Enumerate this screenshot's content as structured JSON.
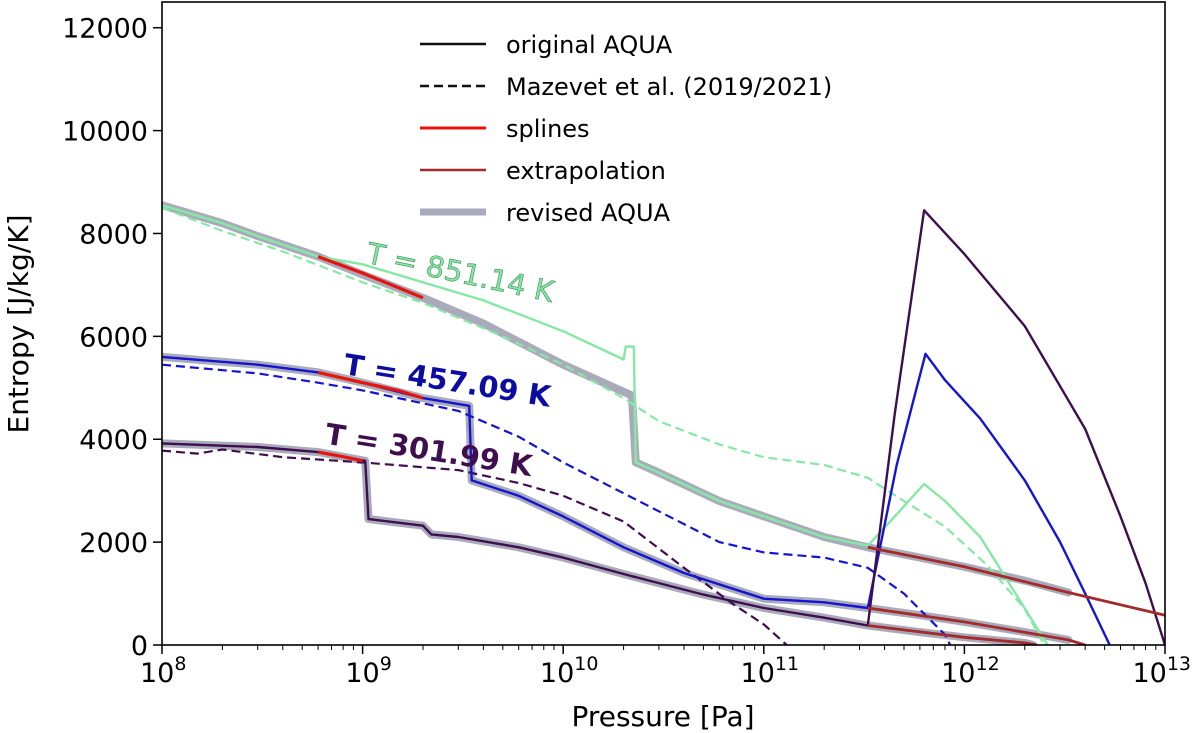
{
  "chart_data": {
    "type": "line",
    "title": "",
    "xlabel": "Pressure [Pa]",
    "ylabel": "Entropy [J/kg/K]",
    "x_scale": "log",
    "xlim": [
      100000000.0,
      10000000000000.0
    ],
    "ylim": [
      0,
      12500
    ],
    "x_tick_labels": [
      {
        "base": "10",
        "exp": "8",
        "value": 100000000.0
      },
      {
        "base": "10",
        "exp": "9",
        "value": 1000000000.0
      },
      {
        "base": "10",
        "exp": "10",
        "value": 10000000000.0
      },
      {
        "base": "10",
        "exp": "11",
        "value": 100000000000.0
      },
      {
        "base": "10",
        "exp": "12",
        "value": 1000000000000.0
      },
      {
        "base": "10",
        "exp": "13",
        "value": 10000000000000.0
      }
    ],
    "y_ticks": [
      0,
      2000,
      4000,
      6000,
      8000,
      10000,
      12000
    ],
    "y_tick_labels": [
      "0",
      "2000",
      "4000",
      "6000",
      "8000",
      "10000",
      "12000"
    ],
    "grid": false,
    "legend_position": "top-center",
    "legend": [
      {
        "label": "original AQUA",
        "style": "solid",
        "color": "#111111"
      },
      {
        "label": "Mazevet et al. (2019/2021)",
        "style": "dashed",
        "color": "#111111"
      },
      {
        "label": "splines",
        "style": "solid",
        "color": "#e8140c"
      },
      {
        "label": "extrapolation",
        "style": "solid",
        "color": "#a52a2a"
      },
      {
        "label": "revised AQUA",
        "style": "thick",
        "color": "#a9abbb"
      }
    ],
    "annotations": [
      {
        "text": "T = 851.14 K",
        "color": "#86e8a4",
        "x": 3000000000.0,
        "y": 7050,
        "rotation": 12,
        "weight": "normal"
      },
      {
        "text": "T = 457.09 K",
        "color": "#0c0ca0",
        "x": 2600000000.0,
        "y": 4950,
        "rotation": 9,
        "weight": "bold"
      },
      {
        "text": "T = 301.99 K",
        "color": "#3e0e4e",
        "x": 2100000000.0,
        "y": 3600,
        "rotation": 9,
        "weight": "bold"
      }
    ],
    "series": [
      {
        "name": "T = 851.14 K",
        "temperature": 851.14,
        "color": "#86e8a4",
        "revised_aqua": [
          [
            100000000.0,
            8550
          ],
          [
            200000000.0,
            8200
          ],
          [
            300000000.0,
            7950
          ],
          [
            600000000.0,
            7550
          ],
          [
            1000000000.0,
            7200
          ],
          [
            2000000000.0,
            6750
          ],
          [
            4000000000.0,
            6250
          ],
          [
            10000000000.0,
            5450
          ],
          [
            22000000000.0,
            4850
          ],
          [
            23000000000.0,
            3550
          ],
          [
            30000000000.0,
            3350
          ],
          [
            60000000000.0,
            2800
          ],
          [
            100000000000.0,
            2500
          ],
          [
            200000000000.0,
            2100
          ],
          [
            330000000000.0,
            1900
          ],
          [
            600000000000.0,
            1700
          ],
          [
            1000000000000.0,
            1520
          ],
          [
            2000000000000.0,
            1250
          ],
          [
            3300000000000.0,
            1020
          ]
        ],
        "original_aqua": [
          [
            100000000.0,
            8550
          ],
          [
            200000000.0,
            8200
          ],
          [
            300000000.0,
            7950
          ],
          [
            600000000.0,
            7550
          ],
          [
            1000000000.0,
            7400
          ],
          [
            2000000000.0,
            7050
          ],
          [
            4000000000.0,
            6700
          ],
          [
            10000000000.0,
            6100
          ],
          [
            20000000000.0,
            5550
          ],
          [
            20500000000.0,
            5800
          ],
          [
            22500000000.0,
            5800
          ],
          [
            23000000000.0,
            3550
          ],
          [
            30000000000.0,
            3350
          ],
          [
            60000000000.0,
            2800
          ],
          [
            100000000000.0,
            2500
          ],
          [
            200000000000.0,
            2100
          ],
          [
            330000000000.0,
            1930
          ],
          [
            450000000000.0,
            2500
          ],
          [
            630000000000.0,
            3130
          ],
          [
            800000000000.0,
            2800
          ],
          [
            1200000000000.0,
            2100
          ],
          [
            1800000000000.0,
            1000
          ],
          [
            2600000000000.0,
            0
          ]
        ],
        "mazevet": [
          [
            100000000.0,
            8500
          ],
          [
            200000000.0,
            8050
          ],
          [
            400000000.0,
            7650
          ],
          [
            1000000000.0,
            7050
          ],
          [
            2000000000.0,
            6650
          ],
          [
            5000000000.0,
            6000
          ],
          [
            10000000000.0,
            5450
          ],
          [
            20000000000.0,
            4800
          ],
          [
            30000000000.0,
            4350
          ],
          [
            60000000000.0,
            3900
          ],
          [
            100000000000.0,
            3650
          ],
          [
            200000000000.0,
            3500
          ],
          [
            330000000000.0,
            3250
          ],
          [
            500000000000.0,
            2800
          ],
          [
            800000000000.0,
            2300
          ],
          [
            1300000000000.0,
            1550
          ],
          [
            2000000000000.0,
            700
          ],
          [
            2500000000000.0,
            0
          ]
        ],
        "splines": [
          [
            600000000.0,
            7550
          ],
          [
            1000000000.0,
            7230
          ],
          [
            1500000000.0,
            6950
          ],
          [
            2000000000.0,
            6750
          ]
        ],
        "extrapolation": [
          [
            330000000000.0,
            1900
          ],
          [
            1000000000000.0,
            1520
          ],
          [
            3300000000000.0,
            1020
          ],
          [
            10000000000000.0,
            580
          ]
        ]
      },
      {
        "name": "T = 457.09 K",
        "temperature": 457.09,
        "color": "#1414d2",
        "revised_aqua": [
          [
            100000000.0,
            5600
          ],
          [
            300000000.0,
            5450
          ],
          [
            600000000.0,
            5300
          ],
          [
            1000000000.0,
            5100
          ],
          [
            2000000000.0,
            4800
          ],
          [
            3400000000.0,
            4650
          ],
          [
            3500000000.0,
            3200
          ],
          [
            6000000000.0,
            2900
          ],
          [
            10000000000.0,
            2500
          ],
          [
            20000000000.0,
            1900
          ],
          [
            40000000000.0,
            1400
          ],
          [
            100000000000.0,
            900
          ],
          [
            200000000000.0,
            830
          ],
          [
            330000000000.0,
            720
          ],
          [
            600000000000.0,
            580
          ],
          [
            1000000000000.0,
            450
          ],
          [
            2000000000000.0,
            250
          ],
          [
            3300000000000.0,
            100
          ]
        ],
        "original_aqua": [
          [
            100000000.0,
            5600
          ],
          [
            300000000.0,
            5450
          ],
          [
            600000000.0,
            5300
          ],
          [
            1000000000.0,
            5100
          ],
          [
            2000000000.0,
            4800
          ],
          [
            3400000000.0,
            4650
          ],
          [
            3500000000.0,
            3200
          ],
          [
            6000000000.0,
            2900
          ],
          [
            10000000000.0,
            2500
          ],
          [
            20000000000.0,
            1900
          ],
          [
            40000000000.0,
            1400
          ],
          [
            100000000000.0,
            900
          ],
          [
            200000000000.0,
            830
          ],
          [
            330000000000.0,
            720
          ],
          [
            460000000000.0,
            3500
          ],
          [
            640000000000.0,
            5660
          ],
          [
            800000000000.0,
            5150
          ],
          [
            1200000000000.0,
            4400
          ],
          [
            2000000000000.0,
            3200
          ],
          [
            3000000000000.0,
            2000
          ],
          [
            4000000000000.0,
            1000
          ],
          [
            5300000000000.0,
            0
          ]
        ],
        "mazevet": [
          [
            100000000.0,
            5450
          ],
          [
            300000000.0,
            5280
          ],
          [
            600000000.0,
            5100
          ],
          [
            1000000000.0,
            4950
          ],
          [
            3000000000.0,
            4550
          ],
          [
            6000000000.0,
            4050
          ],
          [
            10000000000.0,
            3550
          ],
          [
            30000000000.0,
            2600
          ],
          [
            60000000000.0,
            2000
          ],
          [
            100000000000.0,
            1800
          ],
          [
            200000000000.0,
            1700
          ],
          [
            330000000000.0,
            1500
          ],
          [
            500000000000.0,
            1000
          ],
          [
            800000000000.0,
            200
          ],
          [
            850000000000.0,
            0
          ]
        ],
        "splines": [
          [
            600000000.0,
            5300
          ],
          [
            1000000000.0,
            5100
          ],
          [
            1500000000.0,
            4950
          ],
          [
            2000000000.0,
            4800
          ]
        ],
        "extrapolation": [
          [
            330000000000.0,
            720
          ],
          [
            1000000000000.0,
            450
          ],
          [
            3300000000000.0,
            100
          ],
          [
            4000000000000.0,
            0
          ]
        ]
      },
      {
        "name": "T = 301.99 K",
        "temperature": 301.99,
        "color": "#3e0e4e",
        "revised_aqua": [
          [
            100000000.0,
            3920
          ],
          [
            300000000.0,
            3850
          ],
          [
            600000000.0,
            3750
          ],
          [
            1030000000.0,
            3580
          ],
          [
            1070000000.0,
            2450
          ],
          [
            2000000000.0,
            2320
          ],
          [
            2200000000.0,
            2150
          ],
          [
            3000000000.0,
            2100
          ],
          [
            6000000000.0,
            1900
          ],
          [
            10000000000.0,
            1700
          ],
          [
            20000000000.0,
            1380
          ],
          [
            50000000000.0,
            980
          ],
          [
            100000000000.0,
            720
          ],
          [
            200000000000.0,
            530
          ],
          [
            330000000000.0,
            380
          ],
          [
            600000000000.0,
            250
          ],
          [
            1000000000000.0,
            150
          ],
          [
            2000000000000.0,
            40
          ],
          [
            2200000000000.0,
            0
          ]
        ],
        "original_aqua": [
          [
            100000000.0,
            3920
          ],
          [
            300000000.0,
            3850
          ],
          [
            600000000.0,
            3750
          ],
          [
            1030000000.0,
            3580
          ],
          [
            1070000000.0,
            2450
          ],
          [
            2000000000.0,
            2320
          ],
          [
            2200000000.0,
            2150
          ],
          [
            3000000000.0,
            2100
          ],
          [
            6000000000.0,
            1900
          ],
          [
            10000000000.0,
            1700
          ],
          [
            20000000000.0,
            1380
          ],
          [
            50000000000.0,
            980
          ],
          [
            100000000000.0,
            720
          ],
          [
            200000000000.0,
            530
          ],
          [
            330000000000.0,
            380
          ],
          [
            450000000000.0,
            4500
          ],
          [
            630000000000.0,
            8450
          ],
          [
            1000000000000.0,
            7600
          ],
          [
            2000000000000.0,
            6200
          ],
          [
            4000000000000.0,
            4200
          ],
          [
            6000000000000.0,
            2500
          ],
          [
            8000000000000.0,
            1200
          ],
          [
            10000000000000.0,
            0
          ]
        ],
        "mazevet": [
          [
            100000000.0,
            3780
          ],
          [
            150000000.0,
            3720
          ],
          [
            200000000.0,
            3800
          ],
          [
            400000000.0,
            3650
          ],
          [
            1000000000.0,
            3550
          ],
          [
            3000000000.0,
            3400
          ],
          [
            6000000000.0,
            3150
          ],
          [
            10000000000.0,
            2900
          ],
          [
            20000000000.0,
            2400
          ],
          [
            40000000000.0,
            1500
          ],
          [
            70000000000.0,
            800
          ],
          [
            100000000000.0,
            400
          ],
          [
            130000000000.0,
            0
          ]
        ],
        "splines": [
          [
            600000000.0,
            3750
          ],
          [
            800000000.0,
            3660
          ],
          [
            1000000000.0,
            3580
          ]
        ],
        "extrapolation": [
          [
            330000000000.0,
            380
          ],
          [
            1000000000000.0,
            150
          ],
          [
            2000000000000.0,
            40
          ],
          [
            2300000000000.0,
            0
          ]
        ]
      }
    ]
  }
}
